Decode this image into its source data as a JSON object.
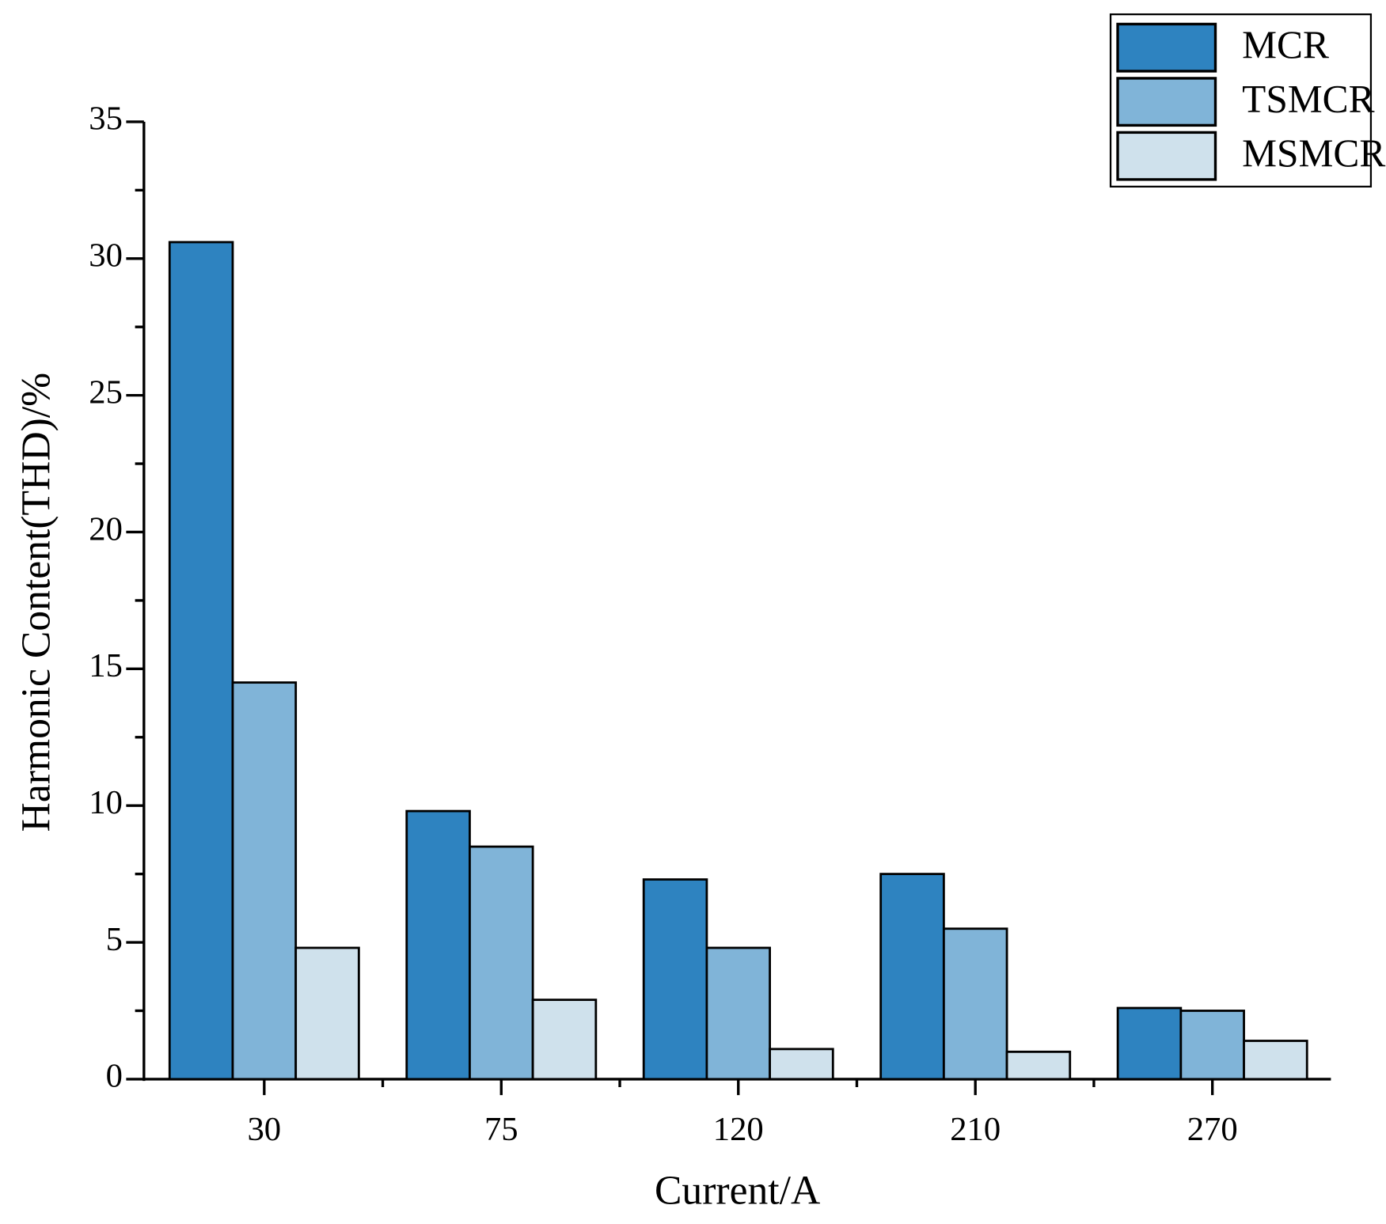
{
  "chart_data": {
    "type": "bar",
    "xlabel": "Current/A",
    "ylabel": "Harmonic Content(THD)/%",
    "categories": [
      "30",
      "75",
      "120",
      "210",
      "270"
    ],
    "series": [
      {
        "name": "MCR",
        "color": "#2e83c0",
        "values": [
          30.6,
          9.8,
          7.3,
          7.5,
          2.6
        ]
      },
      {
        "name": "TSMCR",
        "color": "#80b4d8",
        "values": [
          14.5,
          8.5,
          4.8,
          5.5,
          2.5
        ]
      },
      {
        "name": "MSMCR",
        "color": "#cfe1ec",
        "values": [
          4.8,
          2.9,
          1.1,
          1.0,
          1.4
        ]
      }
    ],
    "ylim": [
      0,
      35
    ],
    "yticks": [
      0,
      5,
      10,
      15,
      20,
      25,
      30,
      35
    ],
    "legend": "upper right"
  }
}
